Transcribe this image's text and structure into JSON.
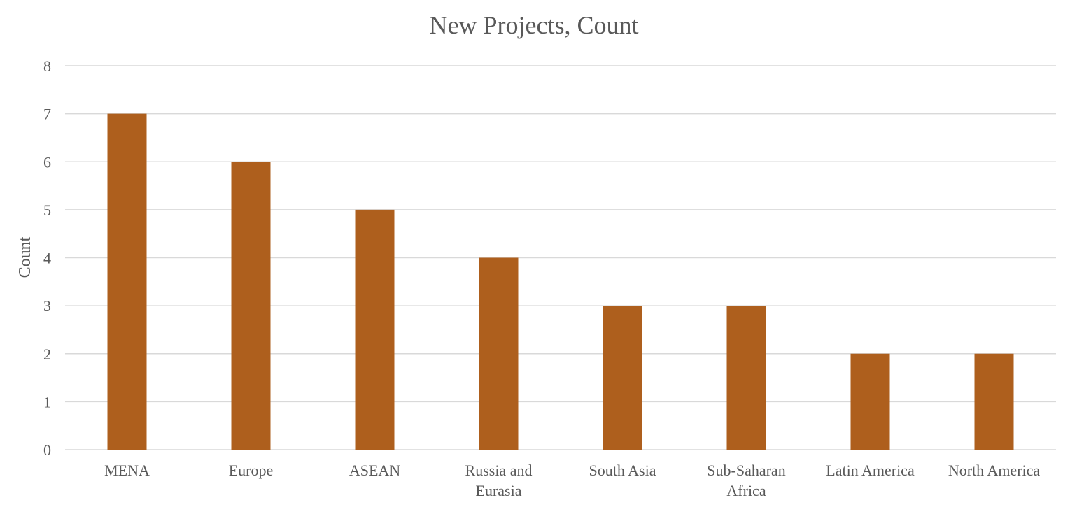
{
  "chart_data": {
    "type": "bar",
    "title": "New Projects, Count",
    "xlabel": "",
    "ylabel": "Count",
    "ylim": [
      0,
      8
    ],
    "yticks": [
      0,
      1,
      2,
      3,
      4,
      5,
      6,
      7,
      8
    ],
    "grid": true,
    "legend": "none",
    "bar_color": "#ae5f1d",
    "categories": [
      [
        "MENA"
      ],
      [
        "Europe"
      ],
      [
        "ASEAN"
      ],
      [
        "Russia and",
        "Eurasia"
      ],
      [
        "South Asia"
      ],
      [
        "Sub-Saharan",
        "Africa"
      ],
      [
        "Latin America"
      ],
      [
        "North America"
      ]
    ],
    "values": [
      7,
      6,
      5,
      4,
      3,
      3,
      2,
      2
    ]
  }
}
